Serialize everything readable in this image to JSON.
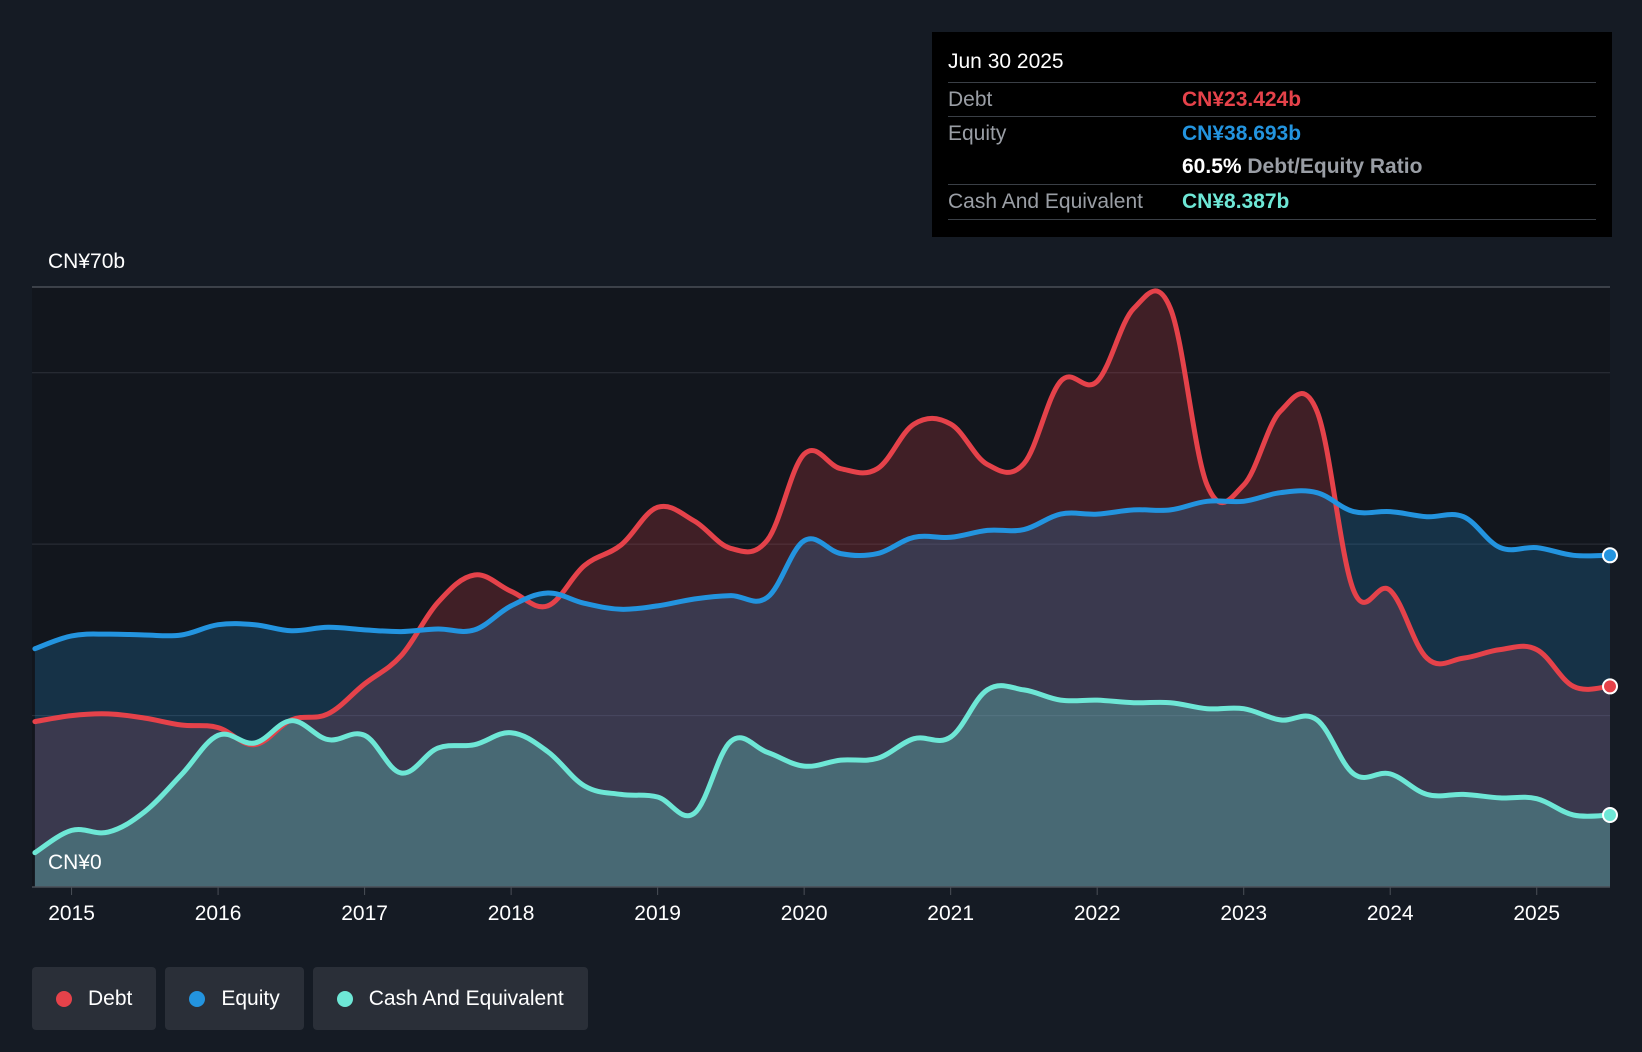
{
  "tooltip": {
    "date": "Jun 30 2025",
    "debt_label": "Debt",
    "debt_value": "CN¥23.424b",
    "equity_label": "Equity",
    "equity_value": "CN¥38.693b",
    "ratio_value": "60.5%",
    "ratio_label": "Debt/Equity Ratio",
    "cash_label": "Cash And Equivalent",
    "cash_value": "CN¥8.387b"
  },
  "legend": [
    {
      "label": "Debt",
      "color": "#e5424a"
    },
    {
      "label": "Equity",
      "color": "#2394df"
    },
    {
      "label": "Cash And Equivalent",
      "color": "#6ee7d6"
    }
  ],
  "chart_data": {
    "type": "area",
    "y_top_label": "CN¥70b",
    "y_bottom_label": "CN¥0",
    "ylim": [
      0,
      70
    ],
    "xlim": [
      2014.73,
      2025.5
    ],
    "x_ticks": [
      "2015",
      "2016",
      "2017",
      "2018",
      "2019",
      "2020",
      "2021",
      "2022",
      "2023",
      "2024",
      "2025"
    ],
    "grid": true,
    "colors": {
      "debt": "#e5424a",
      "equity": "#2394df",
      "cash": "#6ee7d6"
    },
    "series": [
      {
        "name": "Debt",
        "x": [
          2014.75,
          2015.0,
          2015.25,
          2015.5,
          2015.75,
          2016.0,
          2016.25,
          2016.5,
          2016.75,
          2017.0,
          2017.25,
          2017.5,
          2017.75,
          2018.0,
          2018.25,
          2018.5,
          2018.75,
          2019.0,
          2019.25,
          2019.5,
          2019.75,
          2020.0,
          2020.25,
          2020.5,
          2020.75,
          2021.0,
          2021.25,
          2021.5,
          2021.75,
          2022.0,
          2022.25,
          2022.5,
          2022.75,
          2023.0,
          2023.25,
          2023.5,
          2023.75,
          2024.0,
          2024.25,
          2024.5,
          2024.75,
          2025.0,
          2025.25,
          2025.5
        ],
        "values": [
          19.3,
          20.0,
          20.2,
          19.7,
          18.9,
          18.6,
          16.6,
          19.5,
          20.2,
          23.7,
          27.0,
          33.2,
          36.4,
          34.5,
          32.8,
          37.5,
          39.9,
          44.3,
          42.7,
          39.5,
          40.5,
          50.5,
          48.8,
          48.8,
          54.0,
          54.0,
          49.3,
          49.4,
          59.0,
          59.0,
          67.5,
          67.5,
          46.9,
          46.9,
          55.5,
          55.5,
          34.6,
          34.6,
          26.7,
          26.7,
          27.7,
          27.7,
          23.4,
          23.4
        ]
      },
      {
        "name": "Equity",
        "x": [
          2014.75,
          2015.0,
          2015.25,
          2015.5,
          2015.75,
          2016.0,
          2016.25,
          2016.5,
          2016.75,
          2017.0,
          2017.25,
          2017.5,
          2017.75,
          2018.0,
          2018.25,
          2018.5,
          2018.75,
          2019.0,
          2019.25,
          2019.5,
          2019.75,
          2020.0,
          2020.25,
          2020.5,
          2020.75,
          2021.0,
          2021.25,
          2021.5,
          2021.75,
          2022.0,
          2022.25,
          2022.5,
          2022.75,
          2023.0,
          2023.25,
          2023.5,
          2023.75,
          2024.0,
          2024.25,
          2024.5,
          2024.75,
          2025.0,
          2025.25,
          2025.5
        ],
        "values": [
          27.8,
          29.3,
          29.5,
          29.4,
          29.4,
          30.6,
          30.6,
          29.9,
          30.3,
          30.0,
          29.8,
          30.1,
          30.0,
          32.8,
          34.3,
          33.1,
          32.4,
          32.8,
          33.6,
          34.0,
          33.8,
          40.4,
          38.9,
          38.9,
          40.8,
          40.8,
          41.6,
          41.7,
          43.5,
          43.5,
          44.0,
          44.0,
          45.0,
          45.0,
          46.0,
          46.0,
          43.8,
          43.8,
          43.2,
          43.2,
          39.6,
          39.6,
          38.7,
          38.7
        ]
      },
      {
        "name": "Cash And Equivalent",
        "x": [
          2014.75,
          2015.0,
          2015.25,
          2015.5,
          2015.75,
          2016.0,
          2016.25,
          2016.5,
          2016.75,
          2017.0,
          2017.25,
          2017.5,
          2017.75,
          2018.0,
          2018.25,
          2018.5,
          2018.75,
          2019.0,
          2019.25,
          2019.5,
          2019.75,
          2020.0,
          2020.25,
          2020.5,
          2020.75,
          2021.0,
          2021.25,
          2021.5,
          2021.75,
          2022.0,
          2022.25,
          2022.5,
          2022.75,
          2023.0,
          2023.25,
          2023.5,
          2023.75,
          2024.0,
          2024.25,
          2024.5,
          2024.75,
          2025.0,
          2025.25,
          2025.5
        ],
        "values": [
          4.0,
          6.6,
          6.4,
          8.8,
          13.1,
          17.7,
          16.8,
          19.4,
          17.2,
          17.7,
          13.3,
          16.2,
          16.6,
          18.0,
          15.8,
          11.8,
          10.8,
          10.5,
          8.6,
          17.0,
          15.7,
          14.1,
          14.8,
          15.0,
          17.3,
          17.5,
          23.0,
          23.0,
          21.8,
          21.8,
          21.5,
          21.5,
          20.8,
          20.8,
          19.5,
          19.5,
          13.2,
          13.2,
          10.8,
          10.8,
          10.4,
          10.3,
          8.4,
          8.4
        ]
      }
    ]
  }
}
